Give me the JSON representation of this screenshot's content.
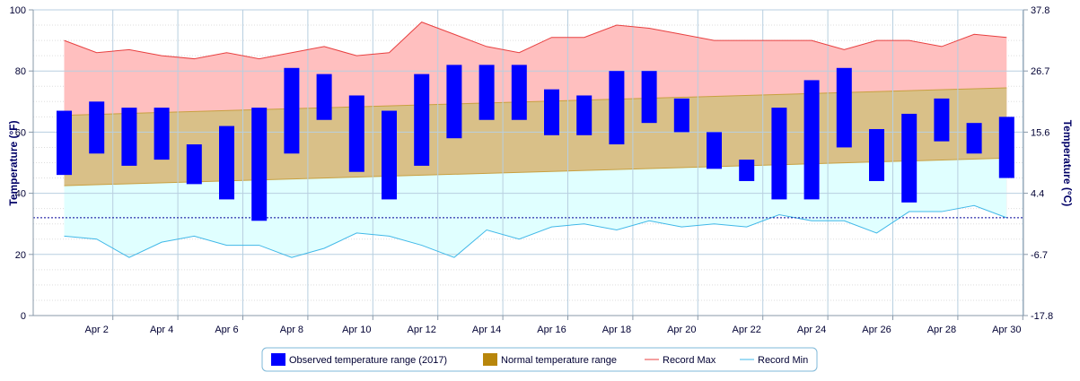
{
  "chart_data": {
    "type": "bar",
    "x": [
      1,
      2,
      3,
      4,
      5,
      6,
      7,
      8,
      9,
      10,
      11,
      12,
      13,
      14,
      15,
      16,
      17,
      18,
      19,
      20,
      21,
      22,
      23,
      24,
      25,
      26,
      27,
      28,
      29,
      30
    ],
    "x_tick_labels": [
      "Apr 2",
      "Apr 4",
      "Apr 6",
      "Apr 8",
      "Apr 10",
      "Apr 12",
      "Apr 14",
      "Apr 16",
      "Apr 18",
      "Apr 20",
      "Apr 22",
      "Apr 24",
      "Apr 26",
      "Apr 28",
      "Apr 30"
    ],
    "x_tick_values": [
      2,
      4,
      6,
      8,
      10,
      12,
      14,
      16,
      18,
      20,
      22,
      24,
      26,
      28,
      30
    ],
    "ylabel": "Temperature (°F)",
    "ylim": [
      0,
      100
    ],
    "y_ticks": [
      0,
      20,
      40,
      60,
      80,
      100
    ],
    "y2label": "Temperature (°C)",
    "y2_tick_labels": [
      "-17.8",
      "-6.7",
      "4.4",
      "15.6",
      "26.7",
      "37.8"
    ],
    "freezing_line_f": 32,
    "grid": true,
    "legend_position": "bottom-center",
    "series": [
      {
        "name": "Observed temperature range (2017)",
        "kind": "range-bar",
        "color": "#0000ff",
        "low": [
          46,
          53,
          49,
          51,
          43,
          38,
          31,
          53,
          64,
          47,
          38,
          49,
          58,
          64,
          64,
          59,
          59,
          56,
          63,
          60,
          48,
          44,
          38,
          38,
          55,
          44,
          37,
          57,
          53,
          45
        ],
        "high": [
          67,
          70,
          68,
          68,
          56,
          62,
          68,
          81,
          79,
          72,
          67,
          79,
          82,
          82,
          82,
          74,
          72,
          80,
          80,
          71,
          60,
          51,
          68,
          77,
          81,
          61,
          66,
          71,
          63,
          65
        ]
      },
      {
        "name": "Normal temperature range",
        "kind": "band",
        "color": "#c8a040",
        "fill": "#d9c088",
        "low_start": 42.5,
        "low_end": 51.5,
        "high_start": 65.5,
        "high_end": 74.5
      },
      {
        "name": "Record Max",
        "kind": "line",
        "color": "#e84040",
        "fill": "#ffbfbf",
        "values": [
          90,
          86,
          87,
          85,
          84,
          86,
          84,
          86,
          88,
          85,
          86,
          96,
          92,
          88,
          86,
          91,
          91,
          95,
          94,
          92,
          90,
          90,
          90,
          90,
          87,
          90,
          90,
          88,
          92,
          91
        ]
      },
      {
        "name": "Record Min",
        "kind": "line",
        "color": "#40b8e8",
        "fill": "#e0ffff",
        "values": [
          26,
          25,
          19,
          24,
          26,
          23,
          23,
          19,
          22,
          27,
          26,
          23,
          19,
          28,
          25,
          29,
          30,
          28,
          31,
          29,
          30,
          29,
          33,
          31,
          31,
          27,
          34,
          34,
          36,
          32
        ]
      }
    ]
  },
  "legend": {
    "items": [
      {
        "label": "Observed temperature range (2017)",
        "color": "#0000ff"
      },
      {
        "label": "Normal temperature range",
        "color": "#b8860b"
      },
      {
        "label": "Record Max",
        "color": "#e84040"
      },
      {
        "label": "Record Min",
        "color": "#40b8e8"
      }
    ]
  }
}
